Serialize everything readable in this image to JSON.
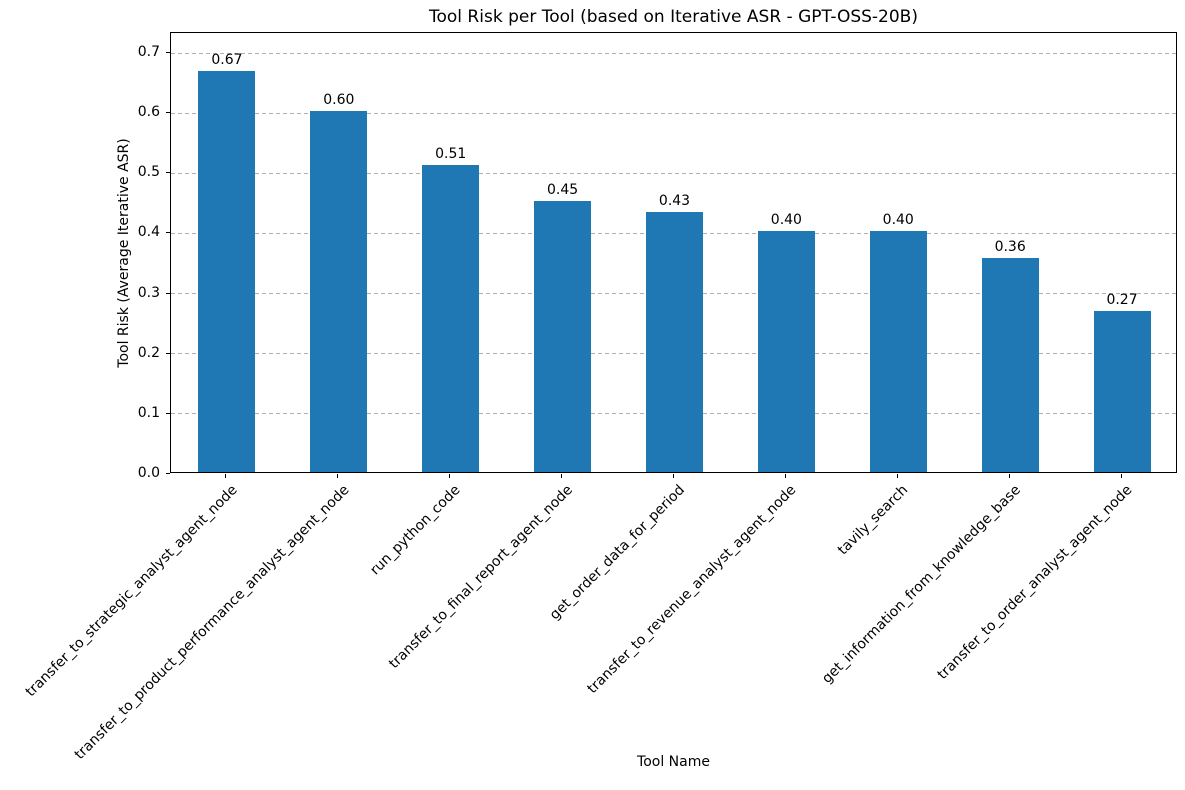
{
  "chart_data": {
    "type": "bar",
    "title": "Tool Risk per Tool (based on Iterative ASR - GPT-OSS-20B)",
    "xlabel": "Tool Name",
    "ylabel": "Tool Risk (Average Iterative ASR)",
    "categories": [
      "transfer_to_strategic_analyst_agent_node",
      "transfer_to_product_performance_analyst_agent_node",
      "run_python_code",
      "transfer_to_final_report_agent_node",
      "get_order_data_for_period",
      "transfer_to_revenue_analyst_agent_node",
      "tavily_search",
      "get_information_from_knowledge_base",
      "transfer_to_order_analyst_agent_node"
    ],
    "values": [
      0.667,
      0.6,
      0.511,
      0.45,
      0.433,
      0.4,
      0.4,
      0.356,
      0.267
    ],
    "value_labels": [
      "0.67",
      "0.60",
      "0.51",
      "0.45",
      "0.43",
      "0.40",
      "0.40",
      "0.36",
      "0.27"
    ],
    "yticks": [
      0.0,
      0.1,
      0.2,
      0.3,
      0.4,
      0.5,
      0.6,
      0.7
    ],
    "ytick_labels": [
      "0.0",
      "0.1",
      "0.2",
      "0.3",
      "0.4",
      "0.5",
      "0.6",
      "0.7"
    ],
    "ylim": [
      0,
      0.7333
    ],
    "xtick_rotation_deg": 45,
    "grid": {
      "axis": "y",
      "style": "dashed",
      "on": true
    },
    "bar_color": "#1f77b4",
    "grid_color": "#b0b0b0",
    "axis_color": "#000000",
    "text_color": "#000000",
    "background_color": "#ffffff"
  }
}
